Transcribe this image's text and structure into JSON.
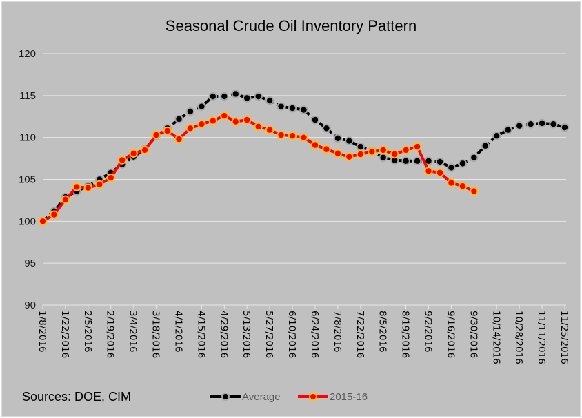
{
  "chart_data": {
    "type": "line",
    "title": "Seasonal Crude Oil Inventory Pattern",
    "xlabel": "",
    "ylabel": "",
    "ylim": [
      90,
      120
    ],
    "yticks": [
      "90",
      "95",
      "100",
      "105",
      "110",
      "115",
      "120"
    ],
    "grid": true,
    "legend_position": "bottom",
    "x_tick_labels": [
      "1/8/2016",
      "1/22/2016",
      "2/5/2016",
      "2/19/2016",
      "3/4/2016",
      "3/18/2016",
      "4/1/2016",
      "4/15/2016",
      "4/29/2016",
      "5/13/2016",
      "5/27/2016",
      "6/10/2016",
      "6/24/2016",
      "7/8/2016",
      "7/22/2016",
      "8/5/2016",
      "8/19/2016",
      "9/2/2016",
      "9/16/2016",
      "9/30/2016",
      "10/14/2016",
      "10/28/2016",
      "11/11/2016",
      "11/25/2016"
    ],
    "x_count": 47,
    "annotation": "Sources:  DOE, CIM",
    "series": [
      {
        "name": "Average",
        "color": "#000000",
        "marker_color": "#000000",
        "marker_edge": "#a6a6a6",
        "dashed": true,
        "values": [
          100.0,
          101.2,
          102.9,
          103.6,
          104.2,
          105.0,
          105.8,
          106.8,
          107.7,
          108.6,
          110.2,
          111.1,
          112.2,
          113.1,
          113.7,
          114.9,
          114.9,
          115.2,
          114.7,
          114.9,
          114.4,
          113.7,
          113.5,
          113.3,
          112.1,
          111.1,
          109.9,
          109.6,
          108.9,
          108.4,
          107.6,
          107.3,
          107.2,
          107.2,
          107.2,
          107.1,
          106.4,
          106.9,
          107.6,
          109.0,
          110.2,
          110.9,
          111.4,
          111.6,
          111.7,
          111.6,
          111.2
        ]
      },
      {
        "name": "2015-16",
        "color": "#ff0000",
        "marker_color": "#ff0000",
        "marker_edge": "#ffc000",
        "dashed": false,
        "values": [
          100.0,
          100.8,
          102.6,
          104.1,
          104.0,
          104.4,
          105.2,
          107.3,
          108.1,
          108.5,
          110.3,
          110.8,
          109.8,
          111.1,
          111.6,
          112.0,
          112.6,
          111.9,
          112.1,
          111.3,
          110.9,
          110.3,
          110.2,
          110.0,
          109.1,
          108.6,
          108.1,
          107.7,
          108.0,
          108.3,
          108.5,
          108.0,
          108.5,
          108.9,
          106.0,
          105.8,
          104.6,
          104.2,
          103.6
        ]
      }
    ]
  }
}
